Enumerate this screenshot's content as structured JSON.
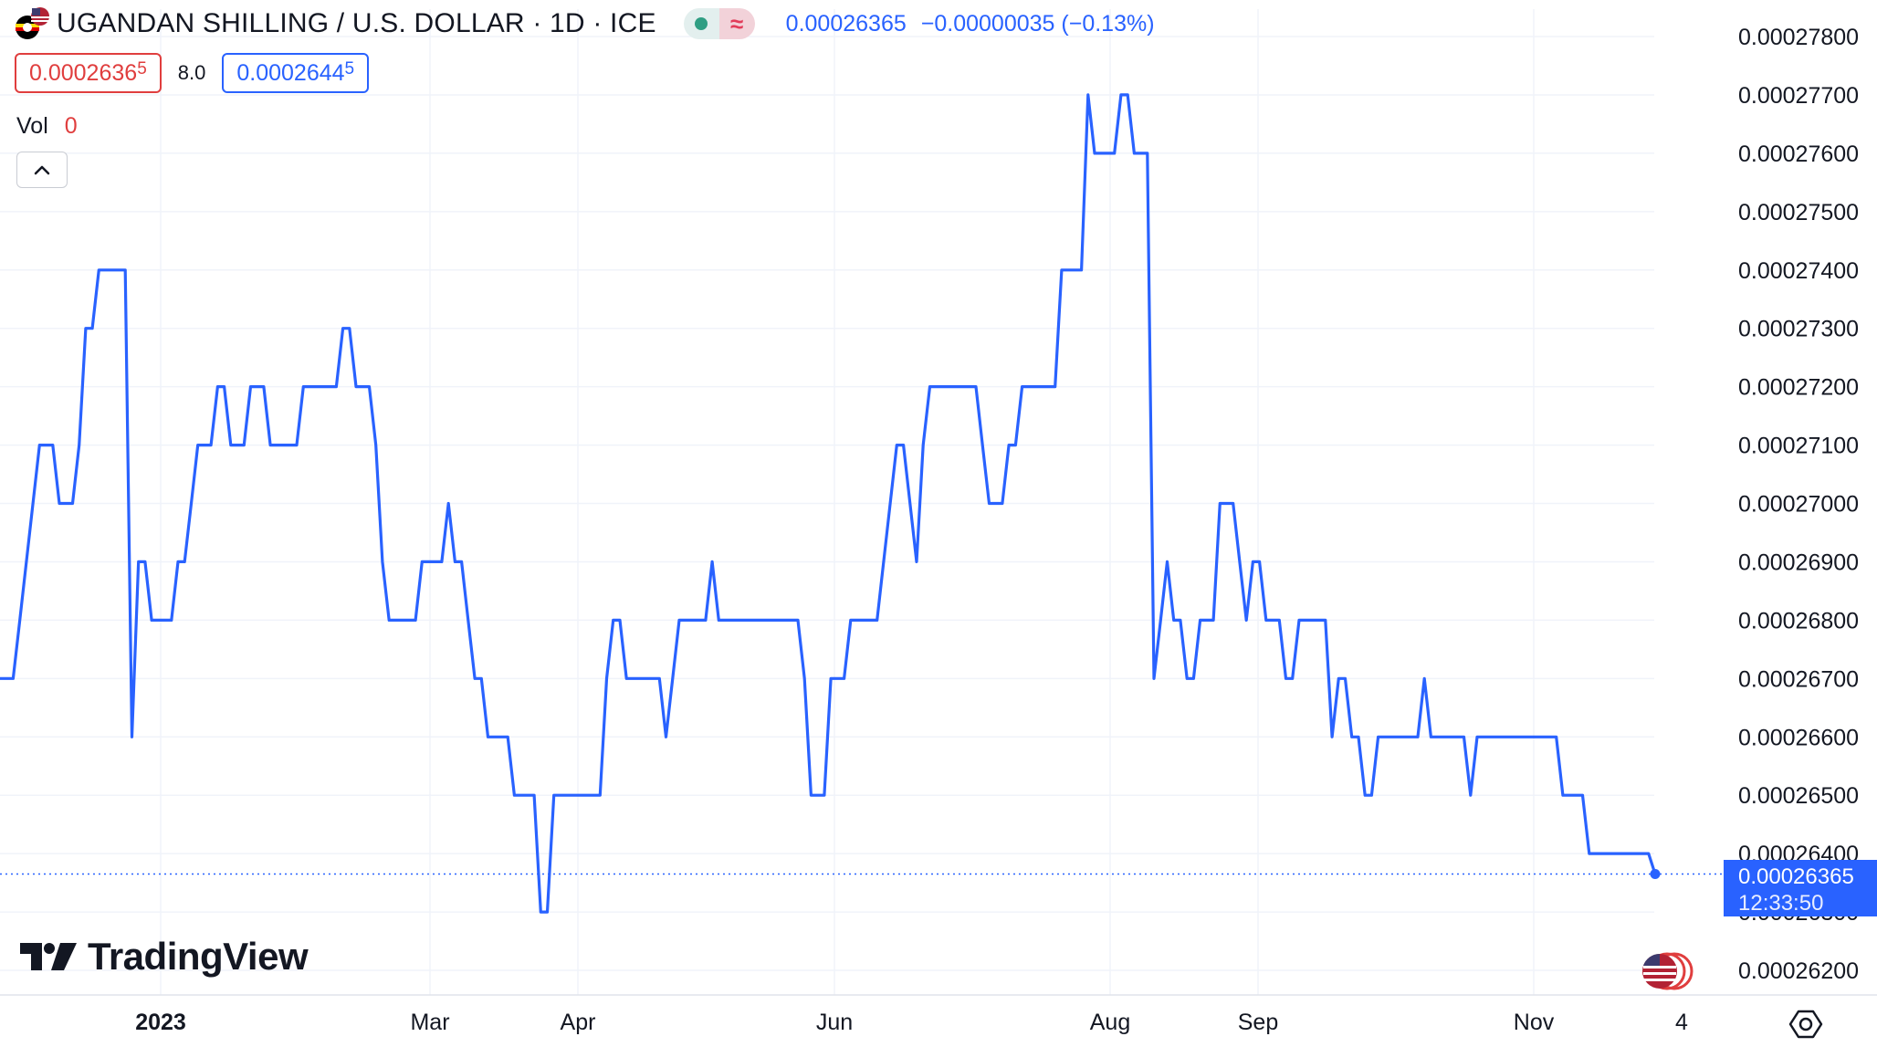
{
  "header": {
    "title": "UGANDAN SHILLING / U.S. DOLLAR · 1D · ICE",
    "last_price": "0.00026365",
    "change": "−0.00000035 (−0.13%)",
    "status_icon": "market-status-icon"
  },
  "quote": {
    "sell_main": "0.0002636",
    "sell_sup": "5",
    "spread": "8.0",
    "buy_main": "0.0002644",
    "buy_sup": "5"
  },
  "volume": {
    "label": "Vol",
    "value": "0"
  },
  "branding": {
    "logo_text": "TradingView"
  },
  "price_label": {
    "value": "0.00026365",
    "countdown": "12:33:50"
  },
  "colors": {
    "line": "#2962ff",
    "grid": "#f0f3fa",
    "text": "#131722",
    "price_badge": "#2962ff",
    "down": "#e03e3e"
  },
  "chart_data": {
    "type": "line",
    "series": [
      {
        "values": [
          0.000267,
          0.000267,
          0.000267,
          0.000268,
          0.000269,
          0.00027,
          0.000271,
          0.000271,
          0.000271,
          0.00027,
          0.00027,
          0.00027,
          0.000271,
          0.000273,
          0.000273,
          0.000274,
          0.000274,
          0.000274,
          0.000274,
          0.000274,
          0.000266,
          0.000269,
          0.000269,
          0.000268,
          0.000268,
          0.000268,
          0.000268,
          0.000269,
          0.000269,
          0.00027,
          0.000271,
          0.000271,
          0.000271,
          0.000272,
          0.000272,
          0.000271,
          0.000271,
          0.000271,
          0.000272,
          0.000272,
          0.000272,
          0.000271,
          0.000271,
          0.000271,
          0.000271,
          0.000271,
          0.000272,
          0.000272,
          0.000272,
          0.000272,
          0.000272,
          0.000272,
          0.000273,
          0.000273,
          0.000272,
          0.000272,
          0.000272,
          0.000271,
          0.000269,
          0.000268,
          0.000268,
          0.000268,
          0.000268,
          0.000268,
          0.000269,
          0.000269,
          0.000269,
          0.000269,
          0.00027,
          0.000269,
          0.000269,
          0.000268,
          0.000267,
          0.000267,
          0.000266,
          0.000266,
          0.000266,
          0.000266,
          0.000265,
          0.000265,
          0.000265,
          0.000265,
          0.000263,
          0.000263,
          0.000265,
          0.000265,
          0.000265,
          0.000265,
          0.000265,
          0.000265,
          0.000265,
          0.000265,
          0.000267,
          0.000268,
          0.000268,
          0.000267,
          0.000267,
          0.000267,
          0.000267,
          0.000267,
          0.000267,
          0.000266,
          0.000267,
          0.000268,
          0.000268,
          0.000268,
          0.000268,
          0.000268,
          0.000269,
          0.000268,
          0.000268,
          0.000268,
          0.000268,
          0.000268,
          0.000268,
          0.000268,
          0.000268,
          0.000268,
          0.000268,
          0.000268,
          0.000268,
          0.000268,
          0.000267,
          0.000265,
          0.000265,
          0.000265,
          0.000267,
          0.000267,
          0.000267,
          0.000268,
          0.000268,
          0.000268,
          0.000268,
          0.000268,
          0.000269,
          0.00027,
          0.000271,
          0.000271,
          0.00027,
          0.000269,
          0.000271,
          0.000272,
          0.000272,
          0.000272,
          0.000272,
          0.000272,
          0.000272,
          0.000272,
          0.000272,
          0.000271,
          0.00027,
          0.00027,
          0.00027,
          0.000271,
          0.000271,
          0.000272,
          0.000272,
          0.000272,
          0.000272,
          0.000272,
          0.000272,
          0.000274,
          0.000274,
          0.000274,
          0.000274,
          0.000277,
          0.000276,
          0.000276,
          0.000276,
          0.000276,
          0.000277,
          0.000277,
          0.000276,
          0.000276,
          0.000276,
          0.000267,
          0.000268,
          0.000269,
          0.000268,
          0.000268,
          0.000267,
          0.000267,
          0.000268,
          0.000268,
          0.000268,
          0.00027,
          0.00027,
          0.00027,
          0.000269,
          0.000268,
          0.000269,
          0.000269,
          0.000268,
          0.000268,
          0.000268,
          0.000267,
          0.000267,
          0.000268,
          0.000268,
          0.000268,
          0.000268,
          0.000268,
          0.000266,
          0.000267,
          0.000267,
          0.000266,
          0.000266,
          0.000265,
          0.000265,
          0.000266,
          0.000266,
          0.000266,
          0.000266,
          0.000266,
          0.000266,
          0.000266,
          0.000267,
          0.000266,
          0.000266,
          0.000266,
          0.000266,
          0.000266,
          0.000266,
          0.000265,
          0.000266,
          0.000266,
          0.000266,
          0.000266,
          0.000266,
          0.000266,
          0.000266,
          0.000266,
          0.000266,
          0.000266,
          0.000266,
          0.000266,
          0.000266,
          0.000265,
          0.000265,
          0.000265,
          0.000265,
          0.000264,
          0.000264,
          0.000264,
          0.000264,
          0.000264,
          0.000264,
          0.000264,
          0.000264,
          0.000264,
          0.000264,
          0.00026365
        ]
      }
    ],
    "x_tick_labels": [
      "2023",
      "Mar",
      "Apr",
      "Jun",
      "Aug",
      "Sep",
      "Nov",
      "4"
    ],
    "y_tick_labels": [
      "0.00027800",
      "0.00027700",
      "0.00027600",
      "0.00027500",
      "0.00027400",
      "0.00027300",
      "0.00027200",
      "0.00027100",
      "0.00027000",
      "0.00026900",
      "0.00026800",
      "0.00026700",
      "0.00026600",
      "0.00026500",
      "0.00026400",
      "0.00026300",
      "0.00026200"
    ],
    "y_ticks": [
      0.000278,
      0.000277,
      0.000276,
      0.000275,
      0.000274,
      0.000273,
      0.000272,
      0.000271,
      0.00027,
      0.000269,
      0.000268,
      0.000267,
      0.000266,
      0.000265,
      0.000264,
      0.000263,
      0.000262
    ],
    "ylim": [
      0.0002618,
      0.0002784
    ],
    "grid": true
  }
}
